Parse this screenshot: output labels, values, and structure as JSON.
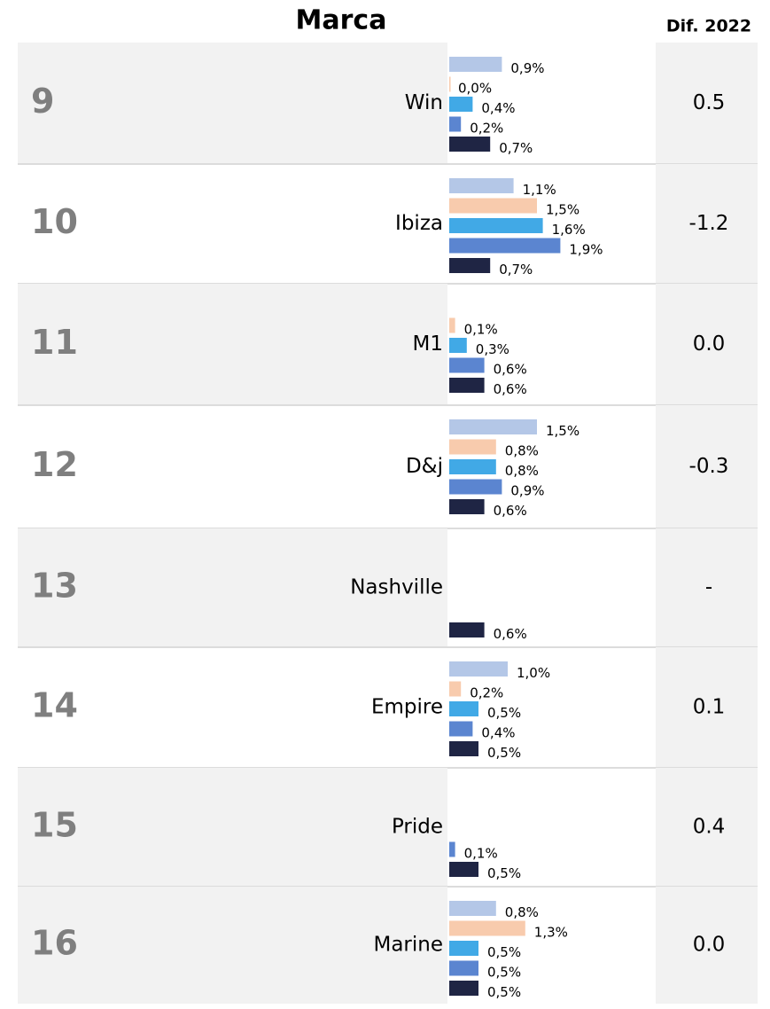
{
  "header": {
    "brand": "Marca",
    "diff": "Dif. 2022"
  },
  "series_colors": [
    "#b4c7e7",
    "#f8cbad",
    "#41a9e6",
    "#5b85d0",
    "#1f2544"
  ],
  "rows": [
    {
      "rank": 9,
      "brand": "Win",
      "values": [
        0.9,
        0.0,
        0.4,
        0.2,
        0.7
      ],
      "value_labels": [
        "0,9%",
        "0,0%",
        "0,4%",
        "0,2%",
        "0,7%"
      ],
      "diff": "0.5"
    },
    {
      "rank": 10,
      "brand": "Ibiza",
      "values": [
        1.1,
        1.5,
        1.6,
        1.9,
        0.7
      ],
      "value_labels": [
        "1,1%",
        "1,5%",
        "1,6%",
        "1,9%",
        "0,7%"
      ],
      "diff": "-1.2",
      "diff_color": "#c00000"
    },
    {
      "rank": 11,
      "brand": "M1",
      "values": [
        null,
        0.1,
        0.3,
        0.6,
        0.6
      ],
      "value_labels": [
        null,
        "0,1%",
        "0,3%",
        "0,6%",
        "0,6%"
      ],
      "diff": "0.0"
    },
    {
      "rank": 12,
      "brand": "D&j",
      "values": [
        1.5,
        0.8,
        0.8,
        0.9,
        0.6
      ],
      "value_labels": [
        "1,5%",
        "0,8%",
        "0,8%",
        "0,9%",
        "0,6%"
      ],
      "diff": "-0.3"
    },
    {
      "rank": 13,
      "brand": "Nashville",
      "values": [
        null,
        null,
        null,
        null,
        0.6
      ],
      "value_labels": [
        null,
        null,
        null,
        null,
        "0,6%"
      ],
      "diff": "-"
    },
    {
      "rank": 14,
      "brand": "Empire",
      "values": [
        1.0,
        0.2,
        0.5,
        0.4,
        0.5
      ],
      "value_labels": [
        "1,0%",
        "0,2%",
        "0,5%",
        "0,4%",
        "0,5%"
      ],
      "diff": "0.1"
    },
    {
      "rank": 15,
      "brand": "Pride",
      "values": [
        null,
        null,
        null,
        0.1,
        0.5
      ],
      "value_labels": [
        null,
        null,
        null,
        "0,1%",
        "0,5%"
      ],
      "diff": "0.4"
    },
    {
      "rank": 16,
      "brand": "Marine",
      "values": [
        0.8,
        1.3,
        0.5,
        0.5,
        0.5
      ],
      "value_labels": [
        "0,8%",
        "1,3%",
        "0,5%",
        "0,5%",
        "0,5%"
      ],
      "diff": "0.0"
    }
  ]
}
